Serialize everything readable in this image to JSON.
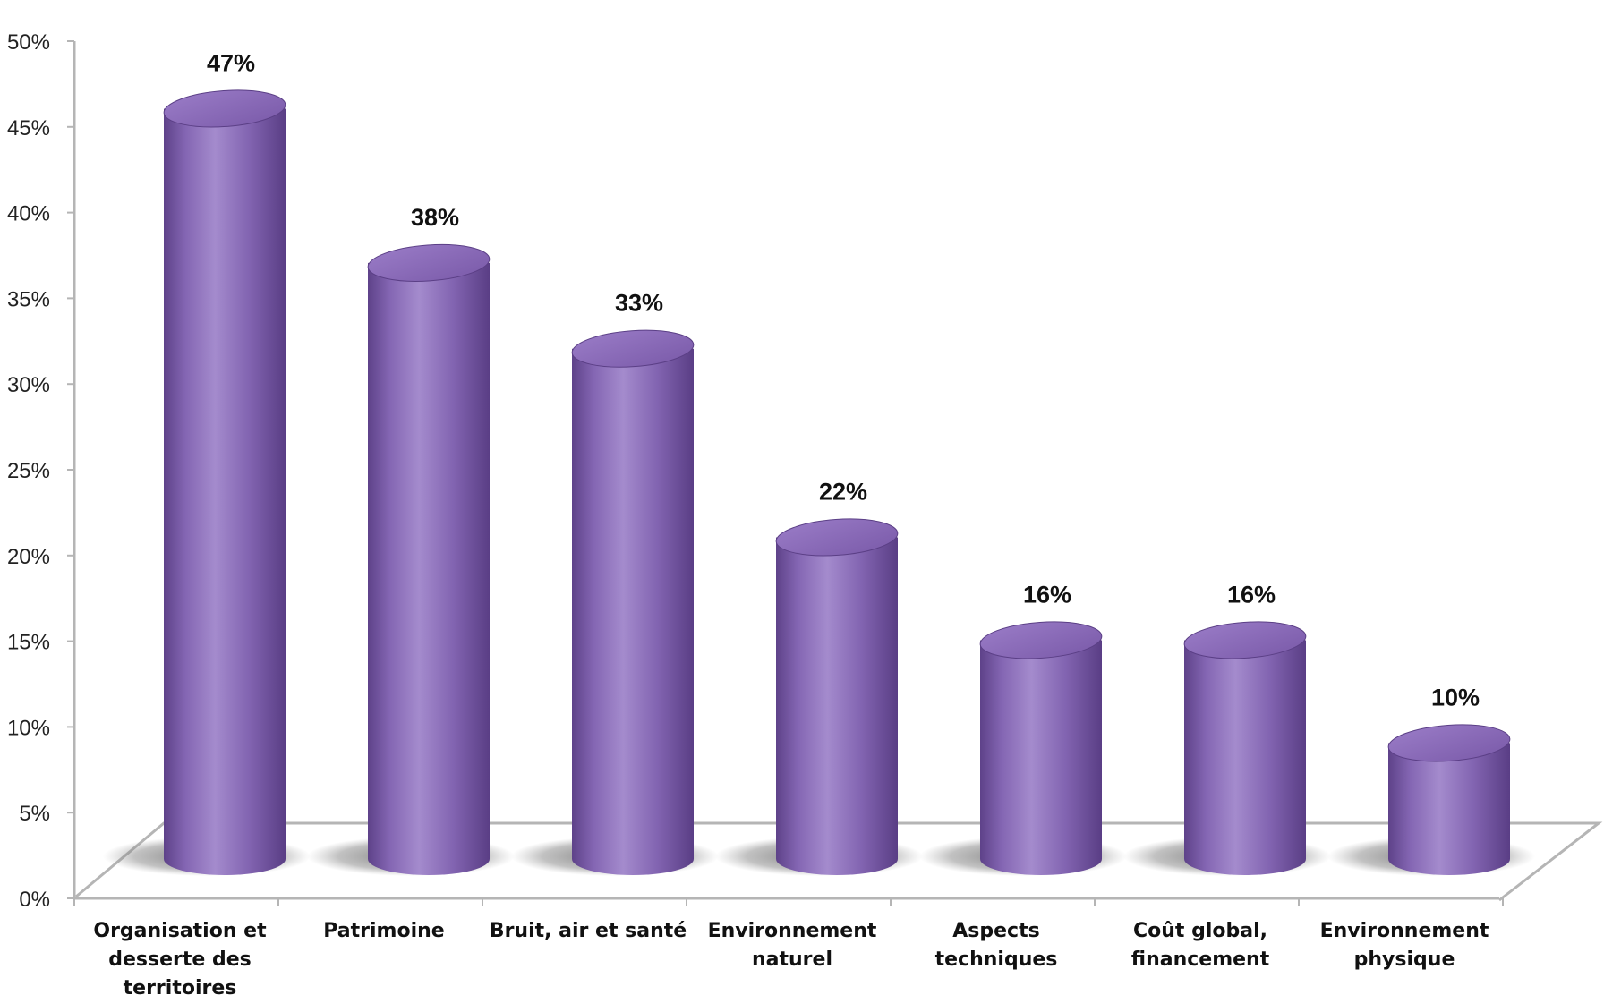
{
  "chart_data": {
    "type": "bar",
    "style": "3d-cylinder",
    "categories": [
      [
        "Organisation et",
        "desserte des",
        "territoires"
      ],
      [
        "Patrimoine"
      ],
      [
        "Bruit, air et santé"
      ],
      [
        "Environnement",
        "naturel"
      ],
      [
        "Aspects",
        "techniques"
      ],
      [
        "Coût global,",
        "financement"
      ],
      [
        "Environnement",
        "physique"
      ]
    ],
    "values": [
      47,
      38,
      33,
      22,
      16,
      16,
      10
    ],
    "data_labels": [
      "47%",
      "38%",
      "33%",
      "22%",
      "16%",
      "16%",
      "10%"
    ],
    "y_ticks": [
      "0%",
      "5%",
      "10%",
      "15%",
      "20%",
      "25%",
      "30%",
      "35%",
      "40%",
      "45%",
      "50%"
    ],
    "ylim": [
      0,
      50
    ],
    "grid": false,
    "legend": "none",
    "colors": {
      "bar": "#7f5fae",
      "bar_light": "#a58ad0",
      "bar_dark": "#5b3f86",
      "bar_top": "#8d6dbd",
      "shadow": "#9a9a9a",
      "axis": "#b5b5b5"
    }
  }
}
